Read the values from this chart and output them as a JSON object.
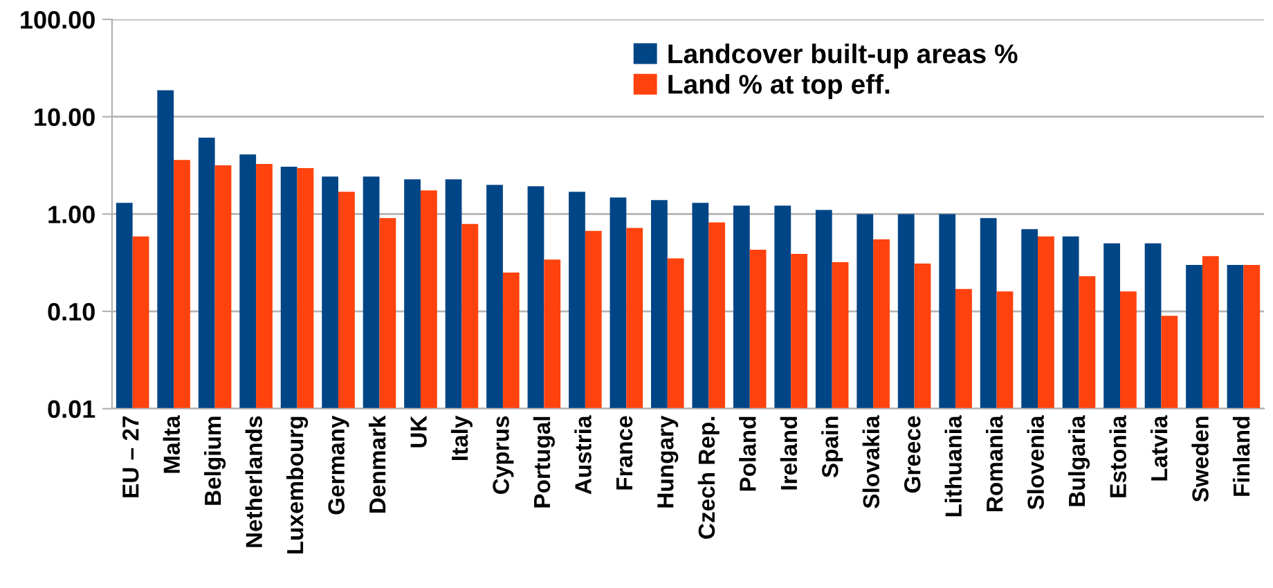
{
  "chart_data": {
    "type": "bar",
    "log": true,
    "categories": [
      "EU – 27",
      "Malta",
      "Belgium",
      "Netherlands",
      "Luxembourg",
      "Germany",
      "Denmark",
      "UK",
      "Italy",
      "Cyprus",
      "Portugal",
      "Austria",
      "France",
      "Hungary",
      "Czech Rep.",
      "Poland",
      "Ireland",
      "Spain",
      "Slovakia",
      "Greece",
      "Lithuania",
      "Romania",
      "Slovenia",
      "Bulgaria",
      "Estonia",
      "Latvia",
      "Sweden",
      "Finland"
    ],
    "series": [
      {
        "name": "Landcover built-up areas %",
        "color": "#004586",
        "values": [
          1.3,
          18.7,
          6.1,
          4.1,
          3.06,
          2.43,
          2.43,
          2.27,
          2.27,
          1.99,
          1.93,
          1.69,
          1.48,
          1.39,
          1.3,
          1.22,
          1.22,
          1.1,
          1.0,
          1.0,
          1.0,
          0.91,
          0.7,
          0.59,
          0.5,
          0.5,
          0.3,
          0.3
        ]
      },
      {
        "name": "Land % at top eff.",
        "color": "#ff420e",
        "values": [
          0.59,
          3.6,
          3.16,
          3.27,
          2.96,
          1.69,
          0.91,
          1.75,
          0.79,
          0.25,
          0.34,
          0.67,
          0.72,
          0.35,
          0.82,
          0.43,
          0.39,
          0.32,
          0.55,
          0.31,
          0.17,
          0.16,
          0.59,
          0.23,
          0.16,
          0.09,
          0.37,
          0.3
        ]
      }
    ],
    "ylim": [
      0.01,
      100
    ],
    "yticks": [
      {
        "value": 0.01,
        "label": "0.01"
      },
      {
        "value": 0.1,
        "label": "0.10"
      },
      {
        "value": 1,
        "label": "1.00"
      },
      {
        "value": 10,
        "label": "10.00"
      },
      {
        "value": 100,
        "label": "100.00"
      }
    ],
    "grid": "y",
    "legend": "top"
  }
}
